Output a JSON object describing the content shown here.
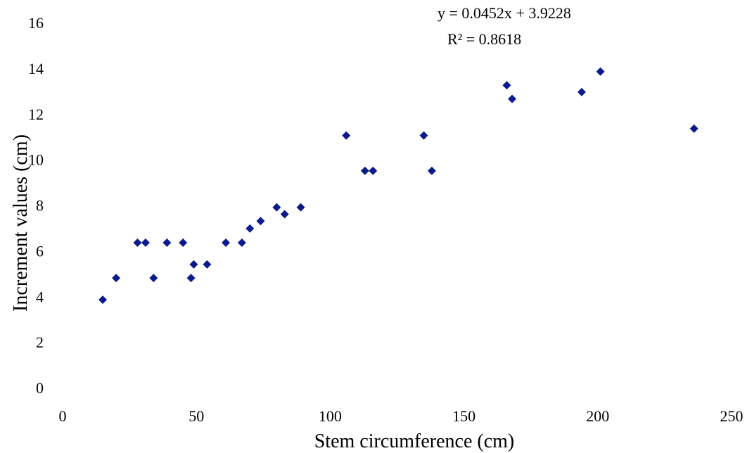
{
  "chart_data": {
    "type": "scatter",
    "title": "",
    "xlabel": "Stem circumference (cm)",
    "ylabel": "Increment values (cm)",
    "xlim": [
      0,
      250
    ],
    "ylim": [
      0,
      16
    ],
    "x_ticks": [
      0,
      50,
      100,
      150,
      200,
      250
    ],
    "y_ticks": [
      0,
      2,
      4,
      6,
      8,
      10,
      12,
      14,
      16
    ],
    "grid": false,
    "marker": "diamond",
    "marker_color": "#0d1a8c",
    "trendline": {
      "equation": "y = 0.0452x + 3.9228",
      "r_squared": "R² = 0.8618"
    },
    "series": [
      {
        "points": [
          {
            "x": 15,
            "y": 3.85
          },
          {
            "x": 20,
            "y": 4.8
          },
          {
            "x": 28,
            "y": 6.35
          },
          {
            "x": 31,
            "y": 6.35
          },
          {
            "x": 34,
            "y": 4.8
          },
          {
            "x": 39,
            "y": 6.35
          },
          {
            "x": 45,
            "y": 6.35
          },
          {
            "x": 48,
            "y": 4.8
          },
          {
            "x": 49,
            "y": 5.4
          },
          {
            "x": 54,
            "y": 5.4
          },
          {
            "x": 61,
            "y": 6.35
          },
          {
            "x": 67,
            "y": 6.35
          },
          {
            "x": 70,
            "y": 6.97
          },
          {
            "x": 74,
            "y": 7.3
          },
          {
            "x": 80,
            "y": 7.9
          },
          {
            "x": 83,
            "y": 7.6
          },
          {
            "x": 89,
            "y": 7.9
          },
          {
            "x": 106,
            "y": 11.05
          },
          {
            "x": 113,
            "y": 9.5
          },
          {
            "x": 116,
            "y": 9.5
          },
          {
            "x": 135,
            "y": 11.05
          },
          {
            "x": 138,
            "y": 9.5
          },
          {
            "x": 166,
            "y": 13.25
          },
          {
            "x": 168,
            "y": 12.65
          },
          {
            "x": 194,
            "y": 12.95
          },
          {
            "x": 201,
            "y": 13.85
          },
          {
            "x": 236,
            "y": 11.35
          }
        ]
      }
    ]
  }
}
